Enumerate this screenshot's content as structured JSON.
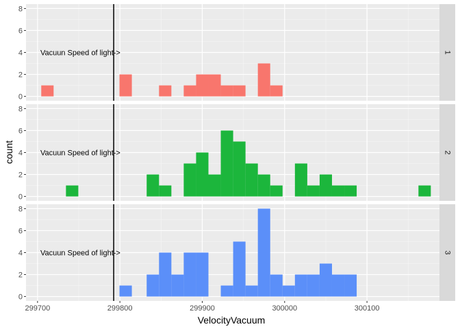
{
  "chart_data": {
    "type": "bar",
    "subtype": "faceted-histogram",
    "title": "",
    "xlabel": "VelocityVacuum",
    "ylabel": "count",
    "xlim": [
      299686,
      300188
    ],
    "ylim": [
      -0.4,
      8.4
    ],
    "x_ticks": [
      299700,
      299800,
      299900,
      300000,
      300100
    ],
    "x_tick_labels": [
      "299700",
      "299800",
      "299900",
      "300000",
      "300100"
    ],
    "y_ticks": [
      0,
      2,
      4,
      6,
      8
    ],
    "y_tick_labels": [
      "0",
      "2",
      "4",
      "6",
      "8"
    ],
    "bin_width": 15,
    "grid": true,
    "legend": "none",
    "vline": {
      "x": 299792.458
    },
    "annotation": {
      "text": "Vacuun Speed of light->",
      "x": 299752,
      "y": 4
    },
    "panels": [
      {
        "strip_label": "1",
        "color": "#F8766D",
        "bins": [
          {
            "x": 299712,
            "count": 1
          },
          {
            "x": 299807,
            "count": 2
          },
          {
            "x": 299855,
            "count": 1
          },
          {
            "x": 299885,
            "count": 1
          },
          {
            "x": 299900,
            "count": 2
          },
          {
            "x": 299915,
            "count": 2
          },
          {
            "x": 299930,
            "count": 1
          },
          {
            "x": 299945,
            "count": 1
          },
          {
            "x": 299975,
            "count": 3
          },
          {
            "x": 299990,
            "count": 1
          }
        ]
      },
      {
        "strip_label": "2",
        "color": "#1CB63C",
        "bins": [
          {
            "x": 299742,
            "count": 1
          },
          {
            "x": 299840,
            "count": 2
          },
          {
            "x": 299855,
            "count": 1
          },
          {
            "x": 299885,
            "count": 3
          },
          {
            "x": 299900,
            "count": 4
          },
          {
            "x": 299915,
            "count": 2
          },
          {
            "x": 299930,
            "count": 6
          },
          {
            "x": 299945,
            "count": 5
          },
          {
            "x": 299960,
            "count": 3
          },
          {
            "x": 299975,
            "count": 2
          },
          {
            "x": 299990,
            "count": 1
          },
          {
            "x": 300020,
            "count": 3
          },
          {
            "x": 300035,
            "count": 1
          },
          {
            "x": 300050,
            "count": 2
          },
          {
            "x": 300065,
            "count": 1
          },
          {
            "x": 300080,
            "count": 1
          },
          {
            "x": 300170,
            "count": 1
          }
        ]
      },
      {
        "strip_label": "3",
        "color": "#5B8FF9",
        "bins": [
          {
            "x": 299807,
            "count": 1
          },
          {
            "x": 299840,
            "count": 2
          },
          {
            "x": 299855,
            "count": 4
          },
          {
            "x": 299870,
            "count": 2
          },
          {
            "x": 299885,
            "count": 4
          },
          {
            "x": 299900,
            "count": 4
          },
          {
            "x": 299930,
            "count": 1
          },
          {
            "x": 299945,
            "count": 5
          },
          {
            "x": 299960,
            "count": 1
          },
          {
            "x": 299975,
            "count": 8
          },
          {
            "x": 299990,
            "count": 2
          },
          {
            "x": 300005,
            "count": 1
          },
          {
            "x": 300020,
            "count": 2
          },
          {
            "x": 300035,
            "count": 2
          },
          {
            "x": 300050,
            "count": 3
          },
          {
            "x": 300065,
            "count": 2
          },
          {
            "x": 300080,
            "count": 2
          }
        ]
      }
    ]
  }
}
